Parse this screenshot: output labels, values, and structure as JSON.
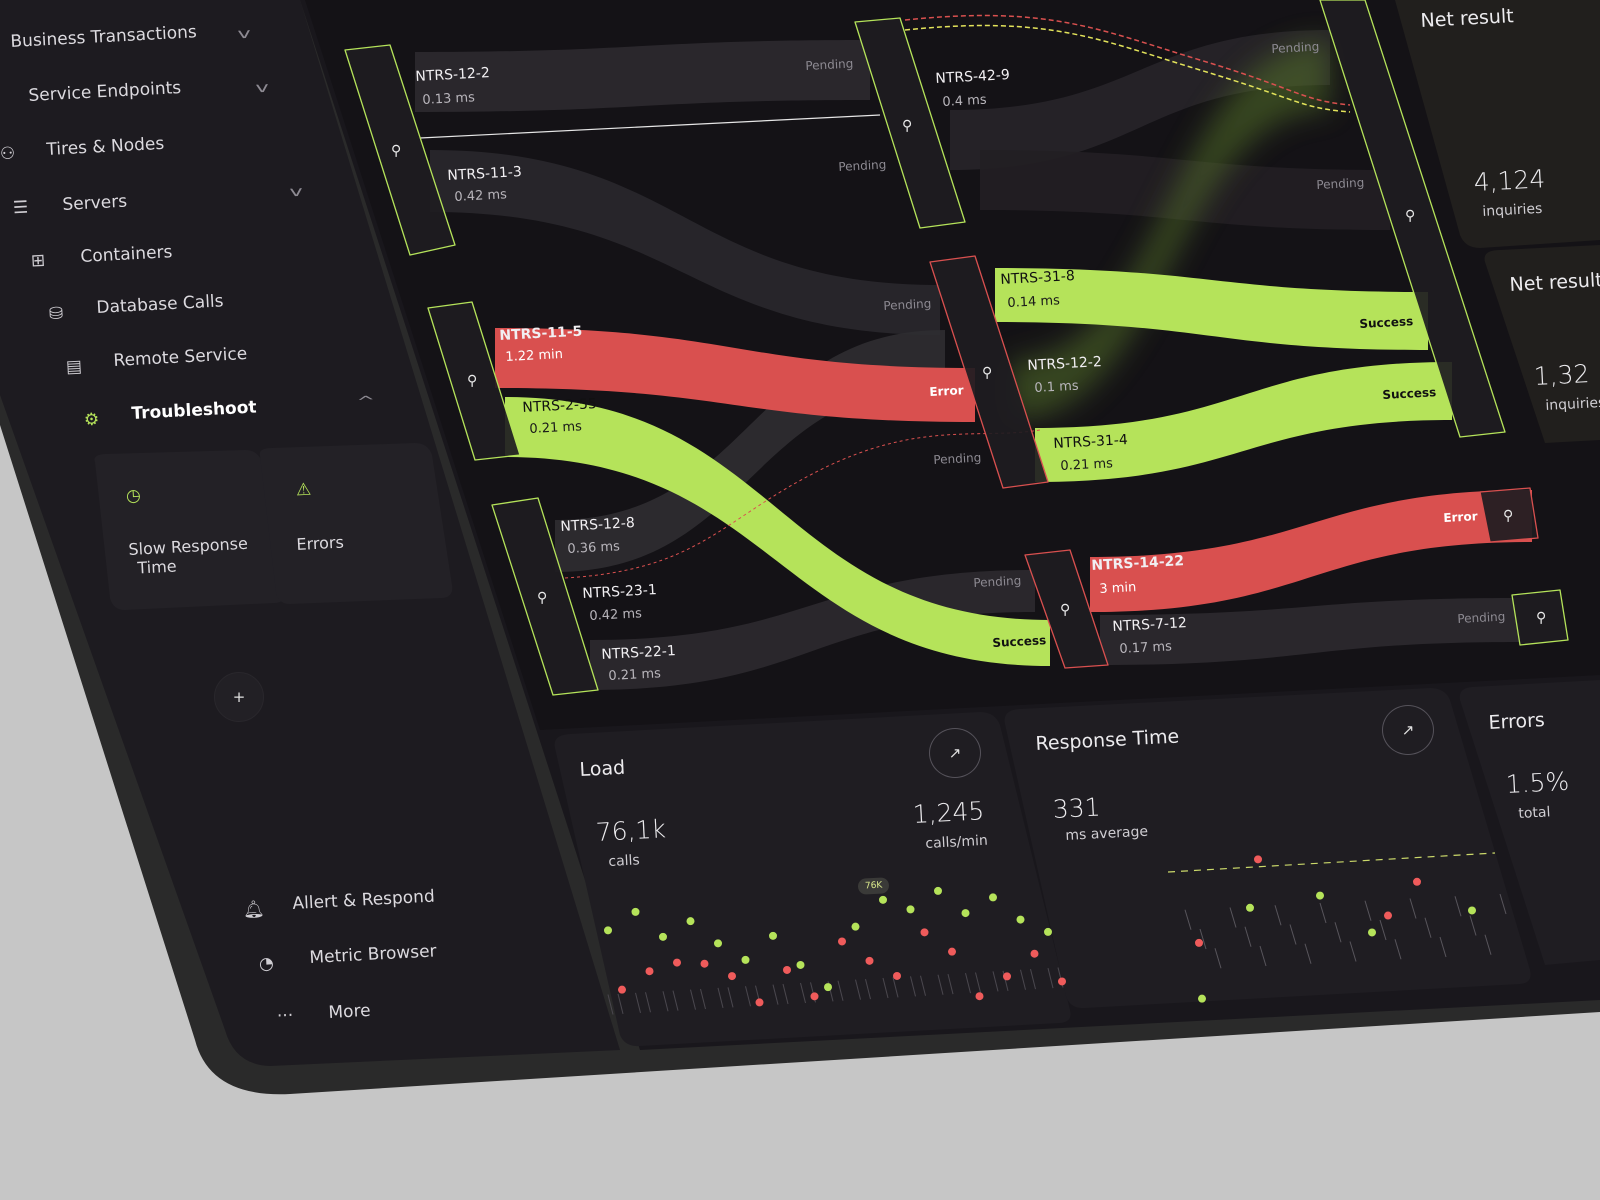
{
  "colors": {
    "accent": "#b5e35a",
    "error": "#d9504f",
    "pending": "#2c2a2f",
    "panel": "#1c1a1f",
    "surface": "#17151a",
    "background": "#c6c6c6"
  },
  "sidebar": {
    "items": [
      {
        "label": "Business Transactions",
        "icon": "",
        "chevron": "down"
      },
      {
        "label": "Service Endpoints",
        "icon": "",
        "chevron": "down"
      },
      {
        "label": "Tires & Nodes",
        "icon": "nodes-icon"
      },
      {
        "label": "Servers",
        "icon": "server-icon",
        "chevron": "down"
      },
      {
        "label": "Containers",
        "icon": "containers-icon"
      },
      {
        "label": "Database Calls",
        "icon": "database-icon"
      },
      {
        "label": "Remote Service",
        "icon": "calendar-gear-icon"
      },
      {
        "label": "Troubleshoot",
        "icon": "gear-icon",
        "chevron": "up",
        "active": true
      }
    ],
    "troubleshoot_cards": [
      {
        "line1": "Slow Response",
        "line2": "Time",
        "icon": "clock-x-icon"
      },
      {
        "line1": "Errors",
        "icon": "warning-icon"
      }
    ],
    "add_label": "+",
    "bottom": [
      {
        "label": "Allert & Respond",
        "icon": "bell-icon"
      },
      {
        "label": "Metric Browser",
        "icon": "pie-chart-icon"
      },
      {
        "label": "More",
        "icon": "more-icon",
        "glyph": "···"
      }
    ]
  },
  "flow": {
    "nodes": [
      {
        "name": "NTRS-12-2",
        "value": "0.13 ms",
        "status": "Pending"
      },
      {
        "name": "NTRS-42-9",
        "value": "0.4 ms"
      },
      {
        "name": "NTRS-11-3",
        "value": "0.42 ms",
        "status": "Pending"
      },
      {
        "name": "NTRS-11-5",
        "value": "1.22 min",
        "status": "Error"
      },
      {
        "name": "NTRS-2-55",
        "value": "0.21 ms",
        "status": "Success"
      },
      {
        "name": "NTRS-31-8",
        "value": "0.14 ms",
        "status": "Success"
      },
      {
        "name": "NTRS-12-2",
        "value": "0.1 ms",
        "status": "Pending"
      },
      {
        "name": "NTRS-31-4",
        "value": "0.21 ms",
        "status": "Success"
      },
      {
        "name": "NTRS-12-8",
        "value": "0.36 ms"
      },
      {
        "name": "NTRS-23-1",
        "value": "0.42 ms"
      },
      {
        "name": "NTRS-22-1",
        "value": "0.21 ms",
        "status": "Pending"
      },
      {
        "name": "NTRS-14-22",
        "value": "3 min",
        "status": "Error"
      },
      {
        "name": "NTRS-7-12",
        "value": "0.17 ms",
        "status": "Pending"
      }
    ],
    "labels": {
      "pending": "Pending",
      "success": "Success",
      "error": "Error"
    }
  },
  "net_result": {
    "title": "Net result",
    "value": "4,124",
    "unit": "inquiries"
  },
  "net_result_2": {
    "title": "Net result",
    "value": "1,32",
    "unit": "inquiries"
  },
  "load": {
    "title": "Load",
    "calls": "76,1k",
    "calls_label": "calls",
    "rate": "1,245",
    "rate_label": "calls/min",
    "tooltip": "76K",
    "green_dots": [
      78,
      90,
      71,
      81,
      64,
      51,
      67,
      45,
      28,
      70,
      88,
      80,
      92,
      75,
      85,
      68,
      58
    ],
    "red_dots": [
      35,
      47,
      52,
      50,
      40,
      20,
      42,
      22,
      60,
      45,
      33,
      63,
      48,
      15,
      28,
      43,
      22
    ]
  },
  "response": {
    "title": "Response Time",
    "value": "331",
    "unit": "ms average",
    "points": [
      {
        "v": 60,
        "c": "red"
      },
      {
        "v": 25,
        "c": "green"
      },
      {
        "v": 80,
        "c": "green"
      },
      {
        "v": 110,
        "c": "red"
      },
      {
        "v": 85,
        "c": "green"
      },
      {
        "v": 60,
        "c": "green"
      },
      {
        "v": 70,
        "c": "red"
      },
      {
        "v": 90,
        "c": "red"
      },
      {
        "v": 70,
        "c": "green"
      }
    ]
  },
  "errors": {
    "title": "Errors",
    "value": "1.5%",
    "unit": "total"
  }
}
